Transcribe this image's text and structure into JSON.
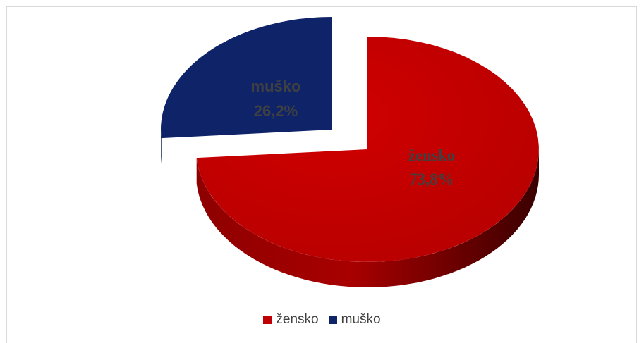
{
  "chart_data": {
    "type": "pie",
    "style": "3d-exploded",
    "categories": [
      "žensko",
      "muško"
    ],
    "values": [
      73.8,
      26.2
    ],
    "data_labels": [
      {
        "category": "žensko",
        "value": "73,8%"
      },
      {
        "category": "muško",
        "value": "26,2%"
      }
    ],
    "colors": {
      "žensko": "#c00000",
      "muško": "#0f2468"
    },
    "label_color": "#404040",
    "legend": {
      "position": "bottom",
      "items": [
        "žensko",
        "muško"
      ]
    },
    "title": ""
  }
}
